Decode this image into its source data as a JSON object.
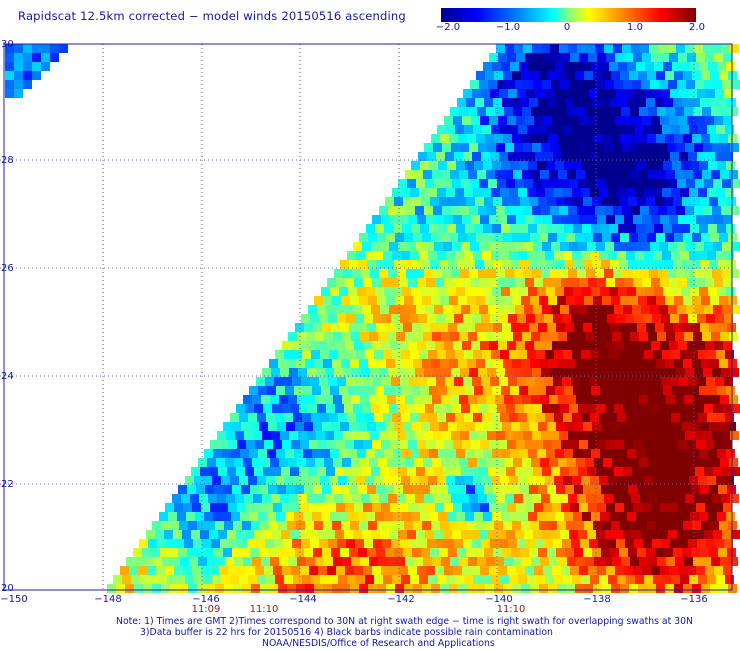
{
  "title": "Rapidscat 12.5km corrected − model winds 20150516 ascending",
  "colorbar": {
    "min": -2.0,
    "max": 2.0,
    "tick_labels": [
      "−2.0",
      "−1.0",
      "0",
      "1.0",
      "2.0"
    ],
    "colors": [
      "#00008f",
      "#0000ff",
      "#0080ff",
      "#00ffff",
      "#80ff80",
      "#ffff00",
      "#ff8000",
      "#ff0000",
      "#800000"
    ]
  },
  "map": {
    "lon_range": [
      -150,
      -135.2
    ],
    "lat_range": [
      20,
      30
    ],
    "x_ticks": [
      "−150",
      "−148",
      "−146",
      "−144",
      "−142",
      "−140",
      "−138",
      "−136"
    ],
    "y_ticks": [
      "30",
      "28",
      "26",
      "24",
      "22",
      "20"
    ],
    "time_labels": [
      "11:09",
      "11:10",
      "11:10"
    ],
    "time_label_color": "#8b1a1a",
    "grid": "dotted"
  },
  "notes": {
    "line1": "Note: 1) Times are GMT 2)Times correspond to 30N at right swath edge − time is right swath for overlapping swaths at 30N",
    "line2": "3)Data buffer is 22 hrs for 20150516 4) Black barbs indicate possible rain contamination",
    "line3": "NOAA/NESDIS/Office of Research and Applications"
  }
}
